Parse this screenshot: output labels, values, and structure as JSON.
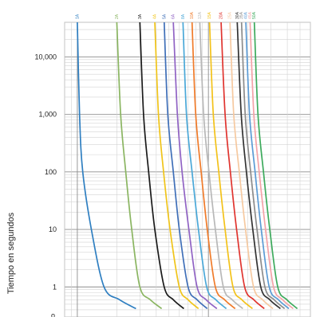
{
  "chart_data": {
    "type": "line",
    "ylabel": "Tiempo en segundos",
    "y_scale": "log",
    "ylim": [
      0.3,
      40000
    ],
    "y_ticks": [
      {
        "value": 10000,
        "label": "10,000"
      },
      {
        "value": 1000,
        "label": "1,000"
      },
      {
        "value": 100,
        "label": "100"
      },
      {
        "value": 10,
        "label": "10"
      },
      {
        "value": 1,
        "label": "1"
      }
    ],
    "y_tick_partial": "o",
    "grid": true,
    "series": [
      {
        "name": "1A",
        "color": "#2f7fc1",
        "x": [
          1.0,
          1.04,
          1.1,
          1.28,
          1.6,
          2.1,
          2.8
        ],
        "y": [
          40000,
          1000,
          100,
          10,
          1,
          0.6,
          0.42
        ]
      },
      {
        "name": "2A",
        "color": "#8ab561",
        "x": [
          2.0,
          2.14,
          2.34,
          2.6,
          3.0,
          3.6,
          4.4
        ],
        "y": [
          40000,
          1000,
          100,
          10,
          1,
          0.6,
          0.42
        ]
      },
      {
        "name": "3A",
        "color": "#1a1a1a",
        "x": [
          3.0,
          3.2,
          3.5,
          3.9,
          4.6,
          5.4,
          6.5
        ],
        "y": [
          40000,
          1000,
          100,
          10,
          1,
          0.6,
          0.42
        ]
      },
      {
        "name": "4A",
        "color": "#f0c419",
        "x": [
          3.9,
          4.16,
          4.55,
          5.1,
          6.0,
          7.0,
          8.4
        ],
        "y": [
          40000,
          1000,
          100,
          10,
          1,
          0.6,
          0.42
        ]
      },
      {
        "name": "5A",
        "color": "#3f6fb8",
        "x": [
          4.6,
          4.9,
          5.4,
          6.0,
          7.0,
          8.2,
          9.8
        ],
        "y": [
          40000,
          1000,
          100,
          10,
          1,
          0.6,
          0.42
        ]
      },
      {
        "name": "6A",
        "color": "#9063c4",
        "x": [
          5.4,
          5.8,
          6.3,
          7.1,
          8.2,
          9.6,
          11.6
        ],
        "y": [
          40000,
          1000,
          100,
          10,
          1,
          0.6,
          0.42
        ]
      },
      {
        "name": "8A",
        "color": "#4aa8d8",
        "x": [
          6.4,
          6.8,
          7.5,
          8.4,
          9.7,
          11.4,
          13.7
        ],
        "y": [
          40000,
          1000,
          100,
          10,
          1,
          0.6,
          0.42
        ]
      },
      {
        "name": "10A",
        "color": "#f07b2a",
        "x": [
          7.5,
          8.0,
          8.8,
          9.8,
          11.3,
          13.3,
          16.0
        ],
        "y": [
          40000,
          1000,
          100,
          10,
          1,
          0.6,
          0.42
        ]
      },
      {
        "name": "12A",
        "color": "#b8b8b8",
        "x": [
          8.6,
          9.2,
          10.1,
          11.3,
          13.0,
          15.2,
          18.3
        ],
        "y": [
          40000,
          1000,
          100,
          10,
          1,
          0.6,
          0.42
        ]
      },
      {
        "name": "15A",
        "color": "#f3c21a",
        "x": [
          10.2,
          10.9,
          12.0,
          13.4,
          15.4,
          18.0,
          21.7
        ],
        "y": [
          40000,
          1000,
          100,
          10,
          1,
          0.6,
          0.42
        ]
      },
      {
        "name": "20A",
        "color": "#e0342f",
        "x": [
          12.5,
          13.4,
          14.7,
          16.4,
          18.9,
          22.2,
          26.7
        ],
        "y": [
          40000,
          1000,
          100,
          10,
          1,
          0.6,
          0.42
        ]
      },
      {
        "name": "25A",
        "color": "#f6c9a0",
        "x": [
          14.6,
          15.6,
          17.2,
          19.2,
          22.1,
          25.9,
          31.1
        ],
        "y": [
          40000,
          1000,
          100,
          10,
          1,
          0.6,
          0.42
        ]
      },
      {
        "name": "30A",
        "color": "#333333",
        "x": [
          16.6,
          17.8,
          19.5,
          21.8,
          25.1,
          29.4,
          35.4
        ],
        "y": [
          40000,
          1000,
          100,
          10,
          1,
          0.6,
          0.42
        ]
      },
      {
        "name": "35A",
        "color": "#8c8c8c",
        "x": [
          17.9,
          19.1,
          21.0,
          23.5,
          27.0,
          31.7,
          38.1
        ],
        "y": [
          40000,
          1000,
          100,
          10,
          1,
          0.6,
          0.42
        ]
      },
      {
        "name": "40A",
        "color": "#5b9bd5",
        "x": [
          19.3,
          20.6,
          22.7,
          25.3,
          29.1,
          34.2,
          41.1
        ],
        "y": [
          40000,
          1000,
          100,
          10,
          1,
          0.6,
          0.42
        ]
      },
      {
        "name": "45A",
        "color": "#f4a3a8",
        "x": [
          20.8,
          22.2,
          24.4,
          27.3,
          31.4,
          36.8,
          44.3
        ],
        "y": [
          40000,
          1000,
          100,
          10,
          1,
          0.6,
          0.42
        ]
      },
      {
        "name": "50A",
        "color": "#3daa5c",
        "x": [
          22.4,
          23.9,
          26.3,
          29.4,
          33.8,
          39.7,
          47.7
        ],
        "y": [
          40000,
          1000,
          100,
          10,
          1,
          0.6,
          0.42
        ]
      }
    ]
  }
}
